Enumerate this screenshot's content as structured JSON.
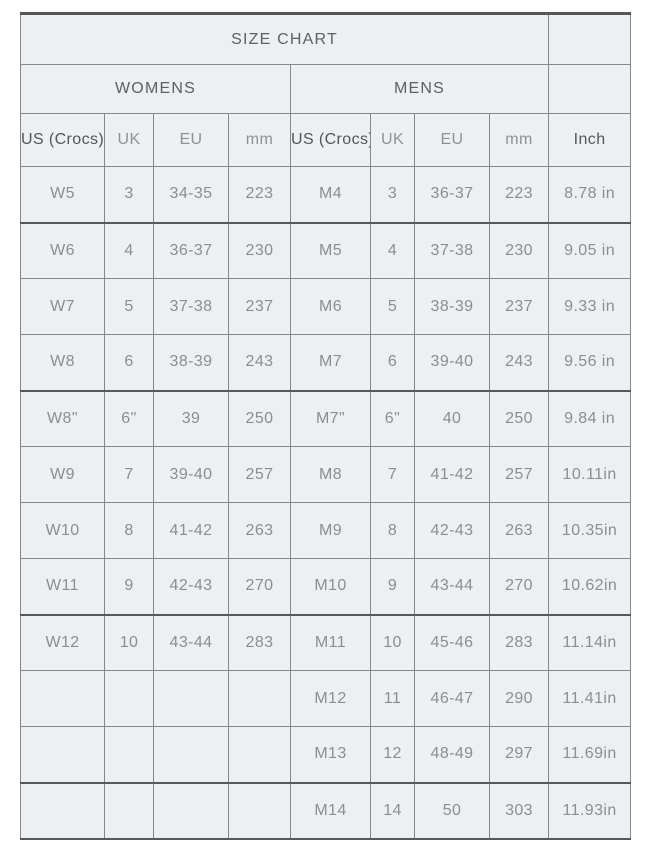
{
  "table": {
    "title": "SIZE CHART",
    "sections": {
      "womens": "WOMENS",
      "mens": "MENS"
    },
    "columns": {
      "womens": [
        "US (Crocs)",
        "UK",
        "EU",
        "mm"
      ],
      "mens": [
        "US (Crocs)",
        "UK",
        "EU",
        "mm"
      ],
      "inch": "Inch"
    },
    "rows": [
      [
        "W5",
        "3",
        "34-35",
        "223",
        "M4",
        "3",
        "36-37",
        "223",
        "8.78 in"
      ],
      [
        "W6",
        "4",
        "36-37",
        "230",
        "M5",
        "4",
        "37-38",
        "230",
        "9.05 in"
      ],
      [
        "W7",
        "5",
        "37-38",
        "237",
        "M6",
        "5",
        "38-39",
        "237",
        "9.33 in"
      ],
      [
        "W8",
        "6",
        "38-39",
        "243",
        "M7",
        "6",
        "39-40",
        "243",
        "9.56 in"
      ],
      [
        "W8\"",
        "6\"",
        "39",
        "250",
        "M7\"",
        "6\"",
        "40",
        "250",
        "9.84 in"
      ],
      [
        "W9",
        "7",
        "39-40",
        "257",
        "M8",
        "7",
        "41-42",
        "257",
        "10.11in"
      ],
      [
        "W10",
        "8",
        "41-42",
        "263",
        "M9",
        "8",
        "42-43",
        "263",
        "10.35in"
      ],
      [
        "W11",
        "9",
        "42-43",
        "270",
        "M10",
        "9",
        "43-44",
        "270",
        "10.62in"
      ],
      [
        "W12",
        "10",
        "43-44",
        "283",
        "M11",
        "10",
        "45-46",
        "283",
        "11.14in"
      ],
      [
        "",
        "",
        "",
        "",
        "M12",
        "11",
        "46-47",
        "290",
        "11.41in"
      ],
      [
        "",
        "",
        "",
        "",
        "M13",
        "12",
        "48-49",
        "297",
        "11.69in"
      ],
      [
        "",
        "",
        "",
        "",
        "M14",
        "14",
        "50",
        "303",
        "11.93in"
      ]
    ],
    "colors": {
      "cell_background": "#edeff0",
      "grid_line": "#85888b",
      "grid_line_dark": "#55575a",
      "heading_text": "#5d6064",
      "header_dark_text": "#54565a",
      "header_light_text": "#8f9295",
      "data_text": "#8b8e92"
    }
  }
}
